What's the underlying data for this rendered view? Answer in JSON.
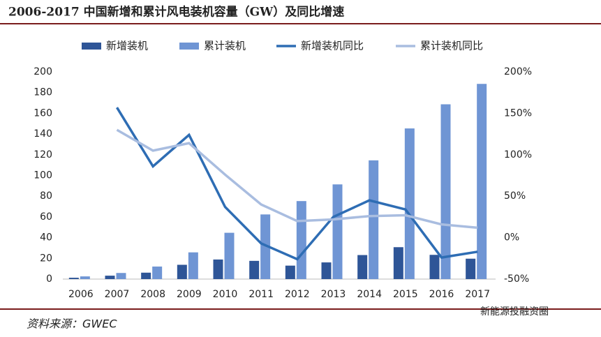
{
  "chart_data": {
    "type": "bar-line",
    "title": "2006-2017 中国新增和累计风电装机容量（GW）及同比增速",
    "source": "资料来源：GWEC",
    "watermark": "新能源投融资圈",
    "categories": [
      "2006",
      "2007",
      "2008",
      "2009",
      "2010",
      "2011",
      "2012",
      "2013",
      "2014",
      "2015",
      "2016",
      "2017"
    ],
    "series": [
      {
        "name": "新增装机",
        "kind": "bar",
        "color": "#2e5597",
        "values": [
          1.3,
          3.3,
          6.2,
          13.8,
          18.9,
          17.6,
          13,
          16.1,
          23.2,
          30.8,
          23.4,
          19.7
        ]
      },
      {
        "name": "累计装机",
        "kind": "bar",
        "color": "#6f95d4",
        "values": [
          2.6,
          5.9,
          12.1,
          25.8,
          44.7,
          62.4,
          75.3,
          91.4,
          114.6,
          145.4,
          168.7,
          188.4
        ]
      },
      {
        "name": "新增装机同比",
        "kind": "line",
        "axis": "y2",
        "color": "#2e6db4",
        "values": [
          null,
          157,
          86,
          124,
          37,
          -7,
          -26,
          25,
          45,
          34,
          -24,
          -17
        ]
      },
      {
        "name": "累计装机同比",
        "kind": "line",
        "axis": "y2",
        "color": "#a9bde0",
        "values": [
          null,
          130,
          105,
          114,
          76,
          40,
          20,
          22,
          26,
          27,
          16,
          12
        ]
      }
    ],
    "ylim": [
      0,
      200
    ],
    "yticks": [
      0,
      20,
      40,
      60,
      80,
      100,
      120,
      140,
      160,
      180,
      200
    ],
    "y2lim": [
      -50,
      200
    ],
    "y2ticks": [
      {
        "value": -50,
        "label": "-50%"
      },
      {
        "value": 0,
        "label": "0%"
      },
      {
        "value": 50,
        "label": "50%"
      },
      {
        "value": 100,
        "label": "100%"
      },
      {
        "value": 150,
        "label": "150%"
      },
      {
        "value": 200,
        "label": "200%"
      }
    ],
    "grid": false
  }
}
